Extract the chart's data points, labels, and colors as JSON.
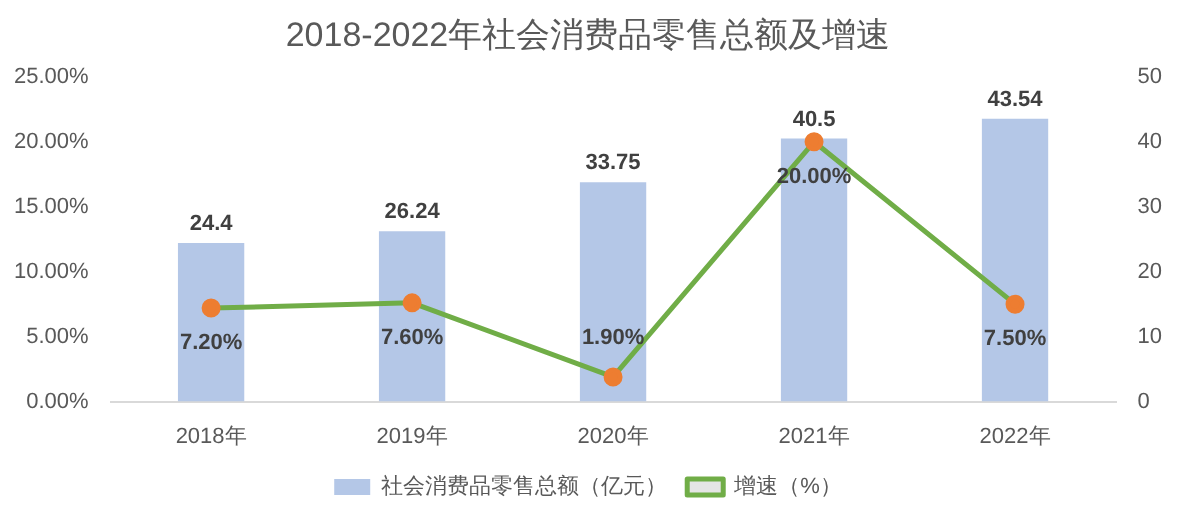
{
  "chart_data": {
    "type": "bar",
    "title": "2018-2022年社会消费品零售总额及增速",
    "categories": [
      "2018年",
      "2019年",
      "2020年",
      "2021年",
      "2022年"
    ],
    "series": [
      {
        "name": "社会消费品零售总额（亿元）",
        "axis": "y2",
        "color": "#b4c7e7",
        "values": [
          24.4,
          26.24,
          33.75,
          40.5,
          43.54
        ],
        "value_labels": [
          "24.4",
          "26.24",
          "33.75",
          "40.5",
          "43.54"
        ]
      },
      {
        "name": "增速（%）",
        "type": "line",
        "axis": "y",
        "color": "#70ad47",
        "colors": [
          "#ed7d31",
          "#ed7d31",
          "#ed7d31",
          "#ed7d31",
          "#ed7d31"
        ],
        "values": [
          7.2,
          7.6,
          1.9,
          20.0,
          7.5
        ],
        "value_labels": [
          "7.20%",
          "7.60%",
          "1.90%",
          "20.00%",
          "7.50%"
        ]
      }
    ],
    "ylim": [
      0,
      25
    ],
    "yticks": [
      {
        "value": 0,
        "label": "0.00%"
      },
      {
        "value": 5,
        "label": "5.00%"
      },
      {
        "value": 10,
        "label": "10.00%"
      },
      {
        "value": 15,
        "label": "15.00%"
      },
      {
        "value": 20,
        "label": "20.00%"
      },
      {
        "value": 25,
        "label": "25.00%"
      }
    ],
    "y2lim": [
      0,
      50
    ],
    "y2ticks": [
      0,
      10,
      20,
      30,
      40,
      50
    ],
    "legend": "bottom",
    "marker": "circle",
    "line_style": "solid"
  }
}
